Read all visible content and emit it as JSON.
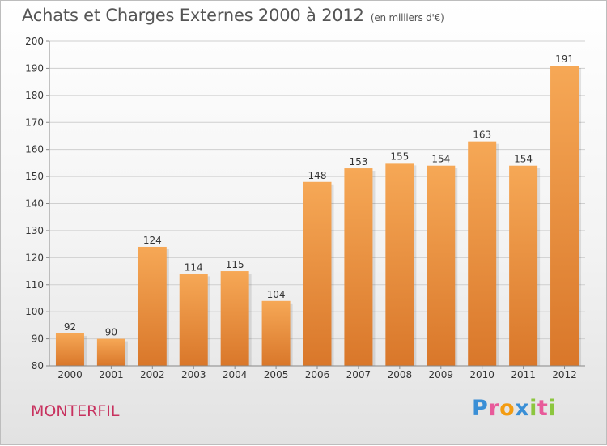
{
  "header": {
    "title": "Achats et Charges Externes 2000 à 2012",
    "unit": "(en milliers d'€)"
  },
  "footer": {
    "commune": "MONTERFIL",
    "logo_letters": [
      "P",
      "r",
      "o",
      "x",
      "i",
      "t",
      "i"
    ],
    "logo_colors": [
      "#3a8fd6",
      "#e85a9a",
      "#f39c12",
      "#3a8fd6",
      "#8cc63f",
      "#e85a9a",
      "#8cc63f"
    ]
  },
  "colors": {
    "bar_top": "#f6a856",
    "bar_bottom": "#d9772a",
    "grid": "#cfcfcf",
    "axis": "#888888",
    "text": "#333333"
  },
  "chart_data": {
    "type": "bar",
    "categories": [
      "2000",
      "2001",
      "2002",
      "2003",
      "2004",
      "2005",
      "2006",
      "2007",
      "2008",
      "2009",
      "2010",
      "2011",
      "2012"
    ],
    "values": [
      92,
      90,
      124,
      114,
      115,
      104,
      148,
      153,
      155,
      154,
      163,
      154,
      191
    ],
    "ylim": [
      80,
      200
    ],
    "yticks": [
      80,
      90,
      100,
      110,
      120,
      130,
      140,
      150,
      160,
      170,
      180,
      190,
      200
    ],
    "grid": true,
    "data_labels": true
  }
}
